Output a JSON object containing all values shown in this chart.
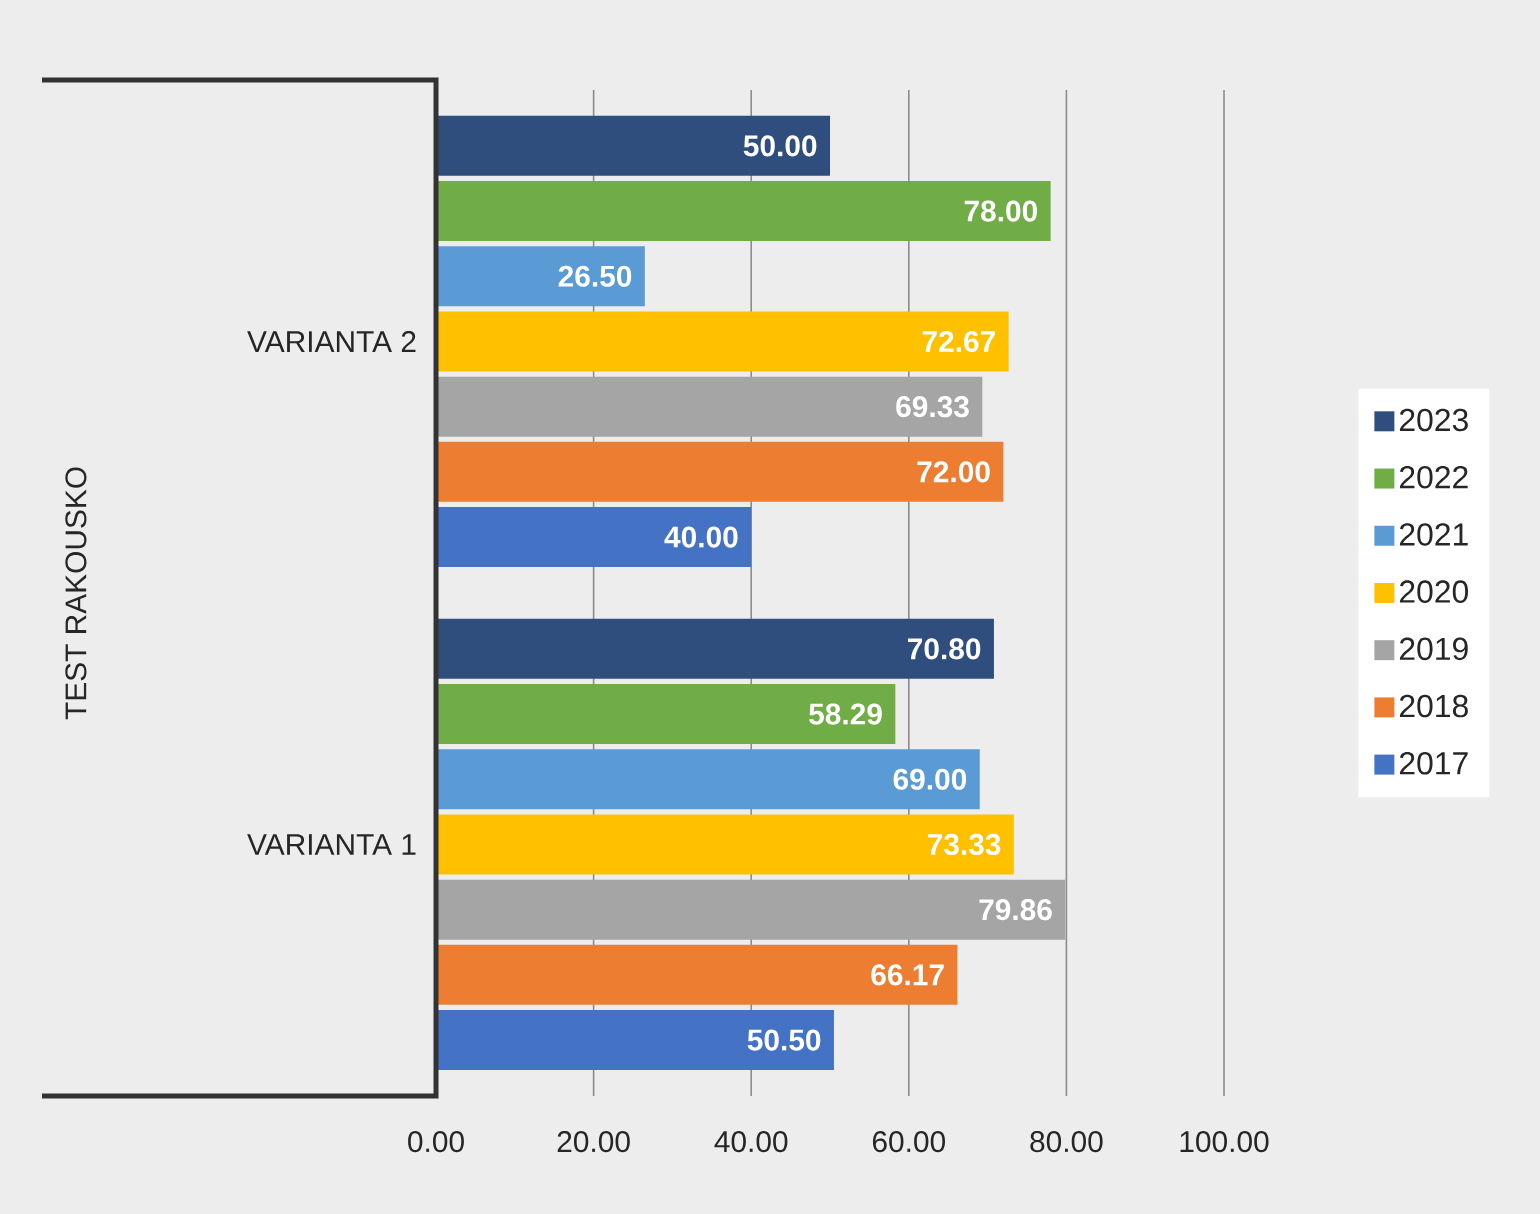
{
  "chart_data": {
    "type": "bar",
    "orientation": "horizontal",
    "annotations": [
      "TEST RAKOUSKO"
    ],
    "categories": [
      "VARIANTA 2",
      "VARIANTA 1"
    ],
    "series": [
      {
        "name": "2017",
        "color": "#4472c4",
        "values": [
          40.0,
          50.5
        ],
        "value_labels": [
          "40.00",
          "50.50"
        ]
      },
      {
        "name": "2018",
        "color": "#ed7d31",
        "values": [
          72.0,
          66.17
        ],
        "value_labels": [
          "72.00",
          "66.17"
        ]
      },
      {
        "name": "2019",
        "color": "#a5a5a5",
        "values": [
          69.33,
          79.86
        ],
        "value_labels": [
          "69.33",
          "79.86"
        ]
      },
      {
        "name": "2020",
        "color": "#ffc000",
        "values": [
          72.67,
          73.33
        ],
        "value_labels": [
          "72.67",
          "73.33"
        ]
      },
      {
        "name": "2021",
        "color": "#5b9bd5",
        "values": [
          26.5,
          69.0
        ],
        "value_labels": [
          "26.50",
          "69.00"
        ]
      },
      {
        "name": "2022",
        "color": "#70ad47",
        "values": [
          78.0,
          58.29
        ],
        "value_labels": [
          "78.00",
          "58.29"
        ]
      },
      {
        "name": "2023",
        "color": "#2f4e7e",
        "values": [
          50.0,
          70.8
        ],
        "value_labels": [
          "50.00",
          "70.80"
        ]
      }
    ],
    "xlim": [
      0,
      100
    ],
    "xticks": [
      {
        "value": 0,
        "label": "0.00"
      },
      {
        "value": 20,
        "label": "20.00"
      },
      {
        "value": 40,
        "label": "40.00"
      },
      {
        "value": 60,
        "label": "60.00"
      },
      {
        "value": 80,
        "label": "80.00"
      },
      {
        "value": 100,
        "label": "100.00"
      }
    ],
    "grid": "x",
    "legend": "right"
  }
}
